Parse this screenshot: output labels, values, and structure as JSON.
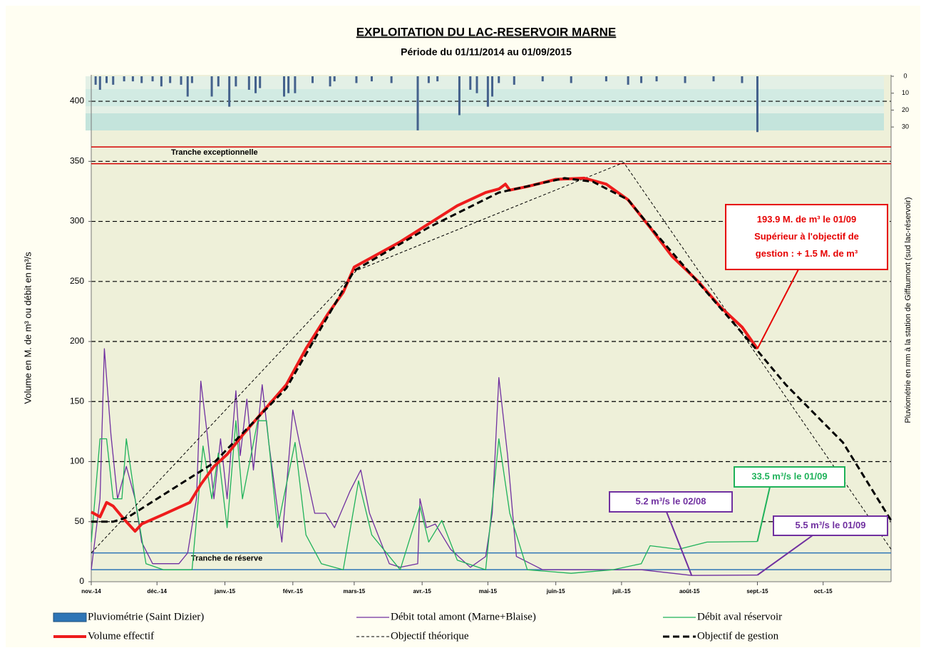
{
  "chart_data": {
    "type": "line",
    "title": "EXPLOITATION DU LAC-RESERVOIR MARNE",
    "subtitle": "Période du 01/11/2014 au 01/09/2015",
    "y_label": "Volume en M. de m³ ou débit en m³/s",
    "y2_label": "Pluviométrie en mm à la station de Giffaumont (sud lac-réservoir)",
    "xlim": [
      0,
      365
    ],
    "xticks": [
      {
        "value": 0,
        "label": "nov.-14"
      },
      {
        "value": 30,
        "label": "déc.-14"
      },
      {
        "value": 61,
        "label": "janv.-15"
      },
      {
        "value": 92,
        "label": "févr.-15"
      },
      {
        "value": 120,
        "label": "mars-15"
      },
      {
        "value": 151,
        "label": "avr.-15"
      },
      {
        "value": 181,
        "label": "mai-15"
      },
      {
        "value": 212,
        "label": "juin-15"
      },
      {
        "value": 242,
        "label": "juil.-15"
      },
      {
        "value": 273,
        "label": "août-15"
      },
      {
        "value": 304,
        "label": "sept.-15"
      },
      {
        "value": 334,
        "label": "oct.-15"
      }
    ],
    "ylim": [
      0,
      422
    ],
    "yticks": [
      0,
      50,
      100,
      150,
      200,
      250,
      300,
      350,
      400
    ],
    "y2lim": [
      0,
      35
    ],
    "y2ticks": [
      0,
      10,
      20,
      30
    ],
    "y2_inverted": true,
    "grid": true,
    "bands": [
      {
        "label": "Tranche exceptionnelle",
        "lines": [
          348,
          362
        ],
        "color": "#d40000"
      },
      {
        "label": "Tranche de réserve",
        "lines": [
          10,
          24
        ],
        "color": "#2e75b6"
      }
    ],
    "series": [
      {
        "name": "Pluviométrie (Saint Dizier)",
        "kind": "bar",
        "axis": "y2",
        "color": "#44618c",
        "x": [
          2,
          4,
          7,
          10,
          15,
          19,
          23,
          28,
          32,
          36,
          41,
          44,
          46,
          55,
          58,
          63,
          66,
          72,
          75,
          77,
          88,
          90,
          93,
          101,
          109,
          111,
          121,
          128,
          137,
          149,
          154,
          158,
          168,
          173,
          176,
          181,
          183,
          186,
          193,
          206,
          219,
          235,
          245,
          251,
          258,
          271,
          284,
          297,
          304
        ],
        "values": [
          5,
          8,
          4,
          5,
          3,
          3,
          4,
          3,
          6,
          4,
          5,
          12,
          4,
          12,
          6,
          18,
          6,
          8,
          10,
          7,
          12,
          10,
          10,
          4,
          6,
          3,
          4,
          3,
          4,
          32,
          4,
          3,
          23,
          8,
          10,
          18,
          12,
          4,
          5,
          3,
          4,
          3,
          5,
          4,
          3,
          4,
          3,
          4,
          33
        ]
      },
      {
        "name": "Débit total amont (Marne+Blaise)",
        "kind": "line",
        "color": "#7030a0",
        "width": 1.3,
        "x": [
          0,
          4,
          6,
          9,
          12,
          16,
          20,
          23,
          28,
          40,
          44,
          48,
          50,
          53,
          56,
          59,
          62,
          66,
          68,
          71,
          74,
          78,
          81,
          87,
          92,
          95,
          102,
          107,
          111,
          118,
          123,
          127,
          136,
          141,
          149,
          150,
          153,
          157,
          164,
          173,
          180,
          183,
          186,
          190,
          194,
          206,
          219,
          251,
          274,
          304
        ],
        "values": [
          10,
          69,
          194,
          122,
          69,
          96,
          69,
          33,
          15,
          15,
          24,
          69,
          167,
          122,
          69,
          119,
          69,
          159,
          105,
          152,
          93,
          164,
          116,
          33,
          143,
          116,
          57,
          57,
          45,
          75,
          93,
          57,
          15,
          12,
          15,
          69,
          45,
          48,
          27,
          12,
          21,
          57,
          170,
          105,
          21,
          10,
          10,
          10,
          5.2,
          5.5
        ]
      },
      {
        "name": "Débit aval réservoir",
        "kind": "line",
        "color": "#1fb25a",
        "width": 1.3,
        "x": [
          0,
          4,
          7,
          10,
          14,
          16,
          20,
          25,
          33,
          46,
          51,
          55,
          58,
          62,
          66,
          69,
          76,
          80,
          85,
          93,
          98,
          105,
          115,
          122,
          128,
          141,
          150,
          154,
          160,
          167,
          180,
          186,
          191,
          199,
          219,
          238,
          251,
          255,
          268,
          281,
          304
        ],
        "values": [
          33,
          119,
          119,
          69,
          69,
          119,
          69,
          15,
          10,
          10,
          113,
          69,
          107,
          45,
          134,
          69,
          134,
          134,
          45,
          116,
          39,
          15,
          10,
          84,
          39,
          10,
          63,
          33,
          51,
          18,
          10,
          119,
          57,
          10,
          7,
          10,
          15,
          30,
          27,
          33,
          33.5
        ]
      },
      {
        "name": "Volume effectif",
        "kind": "line",
        "color": "#ee1c1c",
        "width": 4,
        "x": [
          0,
          4,
          7,
          10,
          15,
          20,
          23,
          33,
          45,
          50,
          56,
          62,
          69,
          79,
          89,
          98,
          108,
          115,
          120,
          128,
          141,
          154,
          167,
          180,
          186,
          189,
          191,
          199,
          212,
          225,
          235,
          245,
          255,
          265,
          277,
          287,
          297,
          304
        ],
        "values": [
          58,
          54,
          66,
          63,
          52,
          42,
          48,
          56,
          66,
          81,
          96,
          106,
          122,
          143,
          164,
          194,
          223,
          241,
          262,
          270,
          283,
          298,
          313,
          324,
          327,
          331,
          326,
          329,
          335,
          336,
          331,
          318,
          295,
          271,
          250,
          229,
          212,
          193.9
        ]
      },
      {
        "name": "Objectif théorique",
        "kind": "line",
        "color": "#000000",
        "width": 1,
        "dash": true,
        "x": [
          0,
          121,
          243,
          365
        ],
        "values": [
          24,
          259,
          349,
          27
        ]
      },
      {
        "name": "Objectif de gestion",
        "kind": "line",
        "color": "#000000",
        "width": 3,
        "dash": true,
        "x": [
          0,
          10,
          17,
          56,
          89,
          120,
          154,
          186,
          216,
          229,
          245,
          258,
          304,
          317,
          343,
          365
        ],
        "values": [
          50,
          50,
          54,
          99,
          161,
          259,
          295,
          324,
          336,
          333,
          318,
          289,
          192.4,
          164,
          116,
          51
        ]
      }
    ],
    "annotations": [
      {
        "lines": [
          "193.9 M. de m³  le 01/09",
          "Supérieur à l'objectif de",
          "gestion : + 1.5 M. de m³"
        ],
        "color": "#e60000"
      },
      {
        "lines": [
          "33.5 m³/s le 01/09"
        ],
        "color": "#1fb25a"
      },
      {
        "lines": [
          "5.2 m³/s le 02/08"
        ],
        "color": "#7030a0"
      },
      {
        "lines": [
          "5.5 m³/s le 01/09"
        ],
        "color": "#7030a0"
      }
    ]
  }
}
